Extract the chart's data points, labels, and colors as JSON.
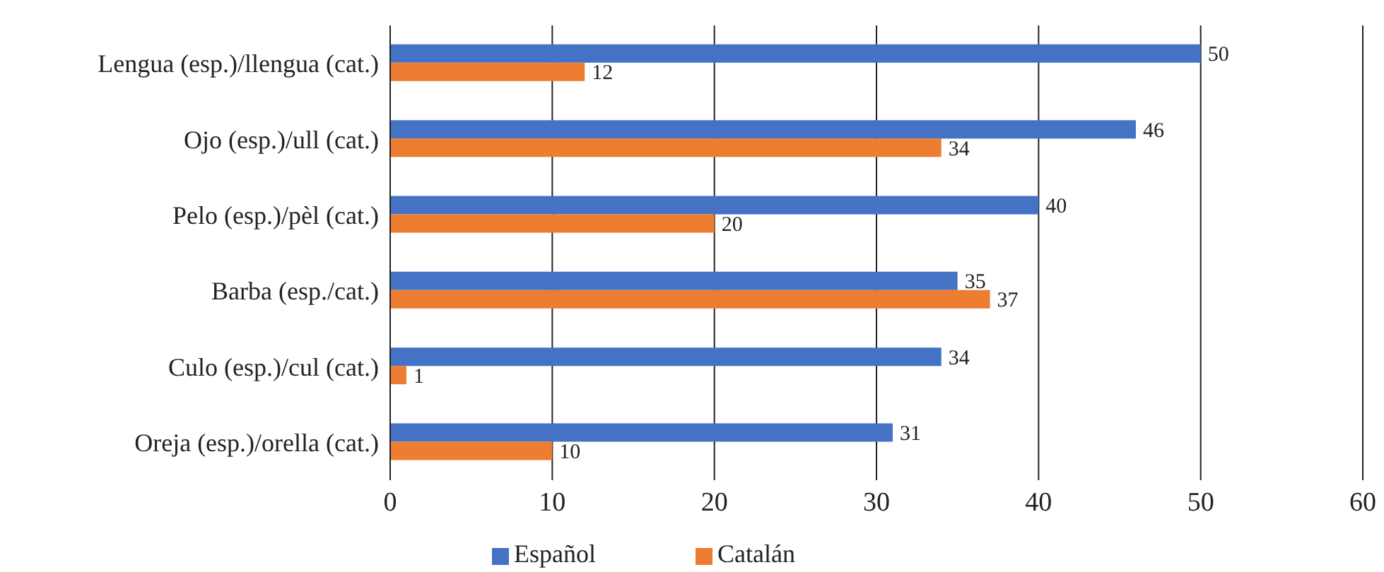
{
  "chart_data": {
    "type": "bar",
    "orientation": "horizontal",
    "categories": [
      "Lengua (esp.)/llengua (cat.)",
      "Ojo (esp.)/ull (cat.)",
      "Pelo (esp.)/pèl (cat.)",
      "Barba (esp./cat.)",
      "Culo (esp.)/cul (cat.)",
      "Oreja (esp.)/orella (cat.)"
    ],
    "series": [
      {
        "name": "Español",
        "color": "#4472c4",
        "values": [
          50,
          46,
          40,
          35,
          34,
          31
        ]
      },
      {
        "name": "Catalán",
        "color": "#ed7d31",
        "values": [
          12,
          34,
          20,
          37,
          1,
          10
        ]
      }
    ],
    "xlim": [
      0,
      60
    ],
    "xticks": [
      0,
      10,
      20,
      30,
      40,
      50,
      60
    ],
    "grid": "x",
    "legend": "bottom",
    "data_labels": true
  }
}
